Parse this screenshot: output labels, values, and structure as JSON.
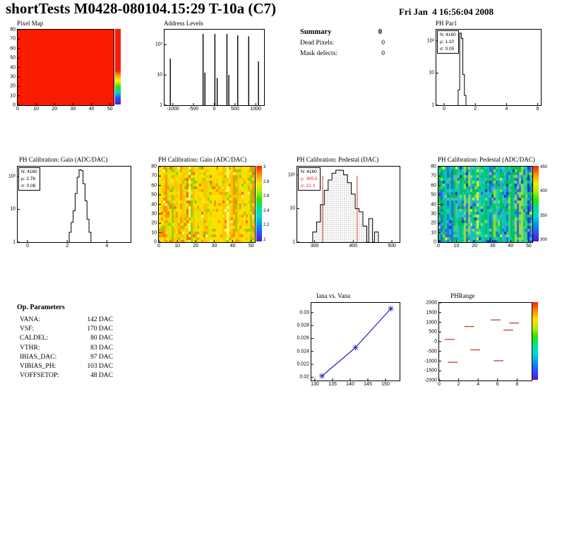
{
  "header": {
    "title": "shortTests M0428-080104.15:29 T-10a (C7)",
    "timestamp": "Fri Jan  4 16:56:04 2008"
  },
  "summary": {
    "title": "Summary",
    "title_value": "0",
    "rows": [
      {
        "label": "Dead Pixels:",
        "value": "0"
      },
      {
        "label": "Mask defects:",
        "value": "0"
      }
    ]
  },
  "op_parameters": {
    "title": "Op. Parameters",
    "rows": [
      {
        "label": "VANA:",
        "value": "142 DAC"
      },
      {
        "label": "VSF:",
        "value": "170 DAC"
      },
      {
        "label": "CALDEL:",
        "value": "80 DAC"
      },
      {
        "label": "VTHR:",
        "value": "83 DAC"
      },
      {
        "label": "IBIAS_DAC:",
        "value": "97 DAC"
      },
      {
        "label": "VIBIAS_PH:",
        "value": "103 DAC"
      },
      {
        "label": "VOFFSETOP:",
        "value": "48 DAC"
      }
    ]
  },
  "chart_data": [
    {
      "id": "pixel_map",
      "type": "heatmap",
      "title": "Pixel Map",
      "xlim": [
        0,
        52
      ],
      "ylim": [
        0,
        80
      ],
      "x_ticks": [
        0,
        10,
        20,
        30,
        40,
        50
      ],
      "y_ticks": [
        0,
        10,
        20,
        30,
        40,
        50,
        60,
        70,
        80
      ],
      "fill_mode": "uniform",
      "uniform_color": "#f81b00",
      "colorbar": {
        "stops": [
          [
            "#f81b00",
            0
          ],
          [
            "#f81b00",
            55
          ],
          [
            "#ffa400",
            62
          ],
          [
            "#fdf300",
            69
          ],
          [
            "#37dd00",
            77
          ],
          [
            "#00d9c8",
            84
          ],
          [
            "#1e4fff",
            92
          ],
          [
            "#6c13c9",
            100
          ]
        ],
        "labels": []
      }
    },
    {
      "id": "address_levels",
      "type": "spikes",
      "title": "Address Levels",
      "xlim": [
        -1200,
        1200
      ],
      "x_ticks": [
        -1000,
        -500,
        0,
        500,
        1000
      ],
      "ylog_max": 2.5,
      "y_decade_labels": [
        "1",
        "10",
        "10²"
      ],
      "spikes": [
        {
          "x": -1060,
          "count": 35
        },
        {
          "x": -270,
          "count": 230
        },
        {
          "x": -225,
          "count": 12
        },
        {
          "x": 15,
          "count": 230
        },
        {
          "x": 70,
          "count": 8
        },
        {
          "x": 305,
          "count": 230
        },
        {
          "x": 350,
          "count": 10
        },
        {
          "x": 565,
          "count": 205
        },
        {
          "x": 830,
          "count": 190
        },
        {
          "x": 1065,
          "count": 28
        }
      ]
    },
    {
      "id": "ph_par1",
      "type": "histogram",
      "title": "PH Par1",
      "xlim": [
        -0.5,
        6.2
      ],
      "x_ticks": [
        0,
        2,
        4,
        6
      ],
      "ylog_max": 2.35,
      "y_decade_labels": [
        "1",
        "10",
        "10²"
      ],
      "stats": {
        "n_label": "N: 4160",
        "mu_label": "µ: 1.10",
        "sigma_label": "σ: 0.05"
      },
      "bin_width": 0.1,
      "bins": [
        [
          0.9,
          3
        ],
        [
          1.0,
          175
        ],
        [
          1.1,
          120
        ],
        [
          1.2,
          9
        ],
        [
          1.3,
          2
        ]
      ]
    },
    {
      "id": "gain_hist",
      "type": "histogram",
      "title": "PH Calibration: Gain (ADC/DAC)",
      "xlim": [
        -0.5,
        5.2
      ],
      "x_ticks": [
        0,
        2,
        4
      ],
      "ylog_max": 2.3,
      "y_decade_labels": [
        "1",
        "10",
        "10²"
      ],
      "stats": {
        "n_label": "N: 4160",
        "mu_label": "µ: 2.76",
        "sigma_label": "σ: 0.08"
      },
      "bin_width": 0.1,
      "bins": [
        [
          2.1,
          2
        ],
        [
          2.2,
          4
        ],
        [
          2.3,
          9
        ],
        [
          2.4,
          30
        ],
        [
          2.5,
          95
        ],
        [
          2.6,
          160
        ],
        [
          2.7,
          150
        ],
        [
          2.8,
          60
        ],
        [
          2.9,
          18
        ],
        [
          3.0,
          5
        ],
        [
          3.1,
          2
        ]
      ]
    },
    {
      "id": "gain_map",
      "type": "heatmap",
      "title": "PH Calibration: Gain (ADC/DAC)",
      "xlim": [
        0,
        52
      ],
      "ylim": [
        0,
        80
      ],
      "x_ticks": [
        0,
        10,
        20,
        30,
        40,
        50
      ],
      "y_ticks": [
        0,
        10,
        20,
        30,
        40,
        50,
        60,
        70,
        80
      ],
      "fill_mode": "mottled",
      "seed": 7,
      "palette": [
        [
          "#ffdf00",
          0.32
        ],
        [
          "#ffc300",
          0.22
        ],
        [
          "#ff9000",
          0.13
        ],
        [
          "#d6e600",
          0.16
        ],
        [
          "#8fd200",
          0.09
        ],
        [
          "#ff6a00",
          0.05
        ],
        [
          "#fff680",
          0.03
        ]
      ],
      "colorbar": {
        "labels": [
          "3",
          "2.8",
          "2.6",
          "2.4",
          "2.2",
          "2"
        ]
      }
    },
    {
      "id": "pedestal_hist",
      "type": "histogram",
      "title": "PH Calibration: Pedestal (DAC)",
      "xlim": [
        255,
        520
      ],
      "x_ticks": [
        300,
        400,
        500
      ],
      "ylog_max": 2.25,
      "y_decade_labels": [
        "1",
        "10",
        "10²"
      ],
      "stats": {
        "n_label": "N: 4160",
        "mu_label": "µ: 365.6",
        "sigma_label": "σ: 22.3",
        "mu_sigma_color": "#e03428"
      },
      "bin_width": 10,
      "fill": "dotted",
      "bins": [
        [
          295,
          2
        ],
        [
          305,
          4
        ],
        [
          315,
          13
        ],
        [
          325,
          35
        ],
        [
          335,
          71
        ],
        [
          345,
          113
        ],
        [
          355,
          140
        ],
        [
          365,
          138
        ],
        [
          375,
          101
        ],
        [
          385,
          59
        ],
        [
          395,
          27
        ],
        [
          405,
          10
        ],
        [
          415,
          8
        ],
        [
          425,
          3
        ],
        [
          440,
          5
        ],
        [
          455,
          2
        ]
      ],
      "vlines": [
        {
          "x": 320.9,
          "color": "#e03428"
        },
        {
          "x": 410.2,
          "color": "#e03428"
        }
      ]
    },
    {
      "id": "pedestal_map",
      "type": "heatmap",
      "title": "PH Calibration: Pedestal (ADC/DAC)",
      "xlim": [
        0,
        52
      ],
      "ylim": [
        0,
        80
      ],
      "x_ticks": [
        0,
        10,
        20,
        30,
        40,
        50
      ],
      "y_ticks": [
        0,
        10,
        20,
        30,
        40,
        50,
        60,
        70,
        80
      ],
      "fill_mode": "mottled",
      "seed": 23,
      "palette": [
        [
          "#00c353",
          0.24
        ],
        [
          "#3ad08b",
          0.14
        ],
        [
          "#00c9b4",
          0.2
        ],
        [
          "#2ab4e4",
          0.14
        ],
        [
          "#2e66ee",
          0.12
        ],
        [
          "#9adf3a",
          0.09
        ],
        [
          "#1437c8",
          0.05
        ],
        [
          "#ddee30",
          0.02
        ]
      ],
      "colorbar": {
        "labels": [
          "450",
          "400",
          "350",
          "300"
        ]
      }
    },
    {
      "id": "iana_vana",
      "type": "line",
      "title": "Iana vs. Vana",
      "xlim": [
        129,
        154
      ],
      "x_ticks": [
        130,
        135,
        140,
        145,
        150
      ],
      "ylim": [
        0.0195,
        0.0315
      ],
      "y_ticks": [
        0.02,
        0.022,
        0.024,
        0.026,
        0.028,
        0.03
      ],
      "series_color": "#2a2ac8",
      "points": [
        [
          132,
          0.0202
        ],
        [
          141.5,
          0.0246
        ],
        [
          151.5,
          0.0306
        ]
      ]
    },
    {
      "id": "ph_range",
      "type": "segments",
      "title": "PHRange",
      "xlim": [
        0,
        9.5
      ],
      "x_ticks": [
        0,
        2,
        4,
        6,
        8
      ],
      "ylim": [
        -2000,
        2000
      ],
      "y_ticks": [
        2000,
        1500,
        1000,
        500,
        0,
        -500,
        -1000,
        -1500,
        -2000
      ],
      "segment_color": "#d23b2e",
      "segments": [
        {
          "x1": 2.6,
          "x2": 3.6,
          "y": 780
        },
        {
          "x1": 5.3,
          "x2": 6.3,
          "y": 1120
        },
        {
          "x1": 7.2,
          "x2": 8.2,
          "y": 960
        },
        {
          "x1": 0.6,
          "x2": 1.6,
          "y": 120
        },
        {
          "x1": 6.6,
          "x2": 7.6,
          "y": 600
        },
        {
          "x1": 3.2,
          "x2": 4.2,
          "y": -420
        },
        {
          "x1": 0.9,
          "x2": 1.9,
          "y": -1060
        },
        {
          "x1": 5.6,
          "x2": 6.6,
          "y": -980
        }
      ],
      "colorbar": {
        "labels": []
      }
    }
  ]
}
